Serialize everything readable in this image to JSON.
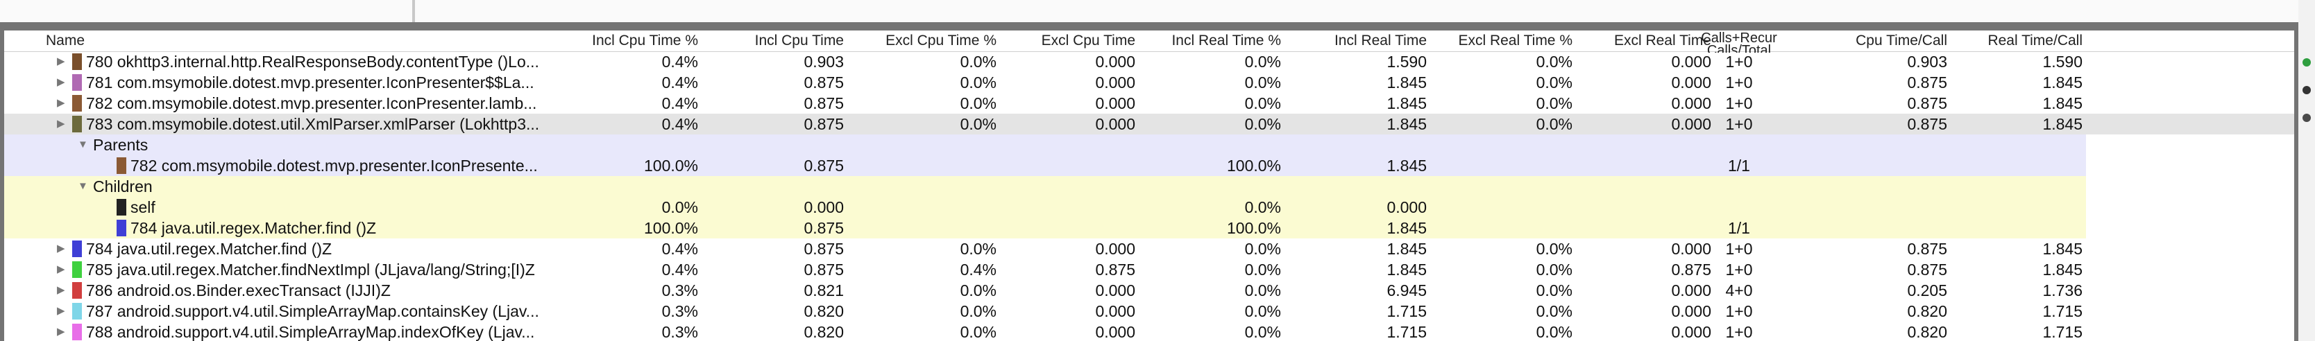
{
  "header": {
    "name": "Name",
    "incl_cpu_pct": "Incl Cpu Time %",
    "incl_cpu": "Incl Cpu Time",
    "excl_cpu_pct": "Excl Cpu Time %",
    "excl_cpu": "Excl Cpu Time",
    "incl_real_pct": "Incl Real Time %",
    "incl_real": "Incl Real Time",
    "excl_real_pct": "Excl Real Time %",
    "excl_real": "Excl Real Time",
    "calls_line1": "Calls+Recur",
    "calls_line2": "Calls/Total",
    "cpu_per_call": "Cpu Time/Call",
    "real_per_call": "Real Time/Call"
  },
  "rows": [
    {
      "kind": "method",
      "color": "#7a4f2b",
      "name": "780 okhttp3.internal.http.RealResponseBody.contentType ()Lo...",
      "incl_cpu_pct": "0.4%",
      "incl_cpu": "0.903",
      "excl_cpu_pct": "0.0%",
      "excl_cpu": "0.000",
      "incl_real_pct": "0.0%",
      "incl_real": "1.590",
      "excl_real_pct": "0.0%",
      "excl_real": "0.000",
      "calls": "1+0",
      "cpu_per_call": "0.903",
      "real_per_call": "1.590"
    },
    {
      "kind": "method",
      "color": "#b06ab3",
      "name": "781 com.msymobile.dotest.mvp.presenter.IconPresenter$$La...",
      "incl_cpu_pct": "0.4%",
      "incl_cpu": "0.875",
      "excl_cpu_pct": "0.0%",
      "excl_cpu": "0.000",
      "incl_real_pct": "0.0%",
      "incl_real": "1.845",
      "excl_real_pct": "0.0%",
      "excl_real": "0.000",
      "calls": "1+0",
      "cpu_per_call": "0.875",
      "real_per_call": "1.845"
    },
    {
      "kind": "method",
      "color": "#8b5a35",
      "name": "782 com.msymobile.dotest.mvp.presenter.IconPresenter.lamb...",
      "incl_cpu_pct": "0.4%",
      "incl_cpu": "0.875",
      "excl_cpu_pct": "0.0%",
      "excl_cpu": "0.000",
      "incl_real_pct": "0.0%",
      "incl_real": "1.845",
      "excl_real_pct": "0.0%",
      "excl_real": "0.000",
      "calls": "1+0",
      "cpu_per_call": "0.875",
      "real_per_call": "1.845"
    },
    {
      "kind": "selected",
      "color": "#6c6a3c",
      "name": "783 com.msymobile.dotest.util.XmlParser.xmlParser (Lokhttp3...",
      "incl_cpu_pct": "0.4%",
      "incl_cpu": "0.875",
      "excl_cpu_pct": "0.0%",
      "excl_cpu": "0.000",
      "incl_real_pct": "0.0%",
      "incl_real": "1.845",
      "excl_real_pct": "0.0%",
      "excl_real": "0.000",
      "calls": "1+0",
      "cpu_per_call": "0.875",
      "real_per_call": "1.845"
    },
    {
      "kind": "parents-header",
      "name": "Parents"
    },
    {
      "kind": "parent",
      "color": "#8b5a35",
      "name": "782 com.msymobile.dotest.mvp.presenter.IconPresente...",
      "incl_cpu_pct": "100.0%",
      "incl_cpu": "0.875",
      "incl_real_pct": "100.0%",
      "incl_real": "1.845",
      "calls": "1/1"
    },
    {
      "kind": "children-header",
      "name": "Children"
    },
    {
      "kind": "child",
      "color": "#222222",
      "name": "self",
      "incl_cpu_pct": "0.0%",
      "incl_cpu": "0.000",
      "incl_real_pct": "0.0%",
      "incl_real": "0.000",
      "calls": ""
    },
    {
      "kind": "child",
      "color": "#3f3fd6",
      "name": "784 java.util.regex.Matcher.find ()Z",
      "incl_cpu_pct": "100.0%",
      "incl_cpu": "0.875",
      "incl_real_pct": "100.0%",
      "incl_real": "1.845",
      "calls": "1/1"
    },
    {
      "kind": "method",
      "color": "#3f3fd6",
      "name": "784 java.util.regex.Matcher.find ()Z",
      "incl_cpu_pct": "0.4%",
      "incl_cpu": "0.875",
      "excl_cpu_pct": "0.0%",
      "excl_cpu": "0.000",
      "incl_real_pct": "0.0%",
      "incl_real": "1.845",
      "excl_real_pct": "0.0%",
      "excl_real": "0.000",
      "calls": "1+0",
      "cpu_per_call": "0.875",
      "real_per_call": "1.845"
    },
    {
      "kind": "method",
      "color": "#3fd13f",
      "name": "785 java.util.regex.Matcher.findNextImpl (JLjava/lang/String;[I)Z",
      "incl_cpu_pct": "0.4%",
      "incl_cpu": "0.875",
      "excl_cpu_pct": "0.4%",
      "excl_cpu": "0.875",
      "incl_real_pct": "0.0%",
      "incl_real": "1.845",
      "excl_real_pct": "0.0%",
      "excl_real": "0.875",
      "calls": "1+0",
      "cpu_per_call": "0.875",
      "real_per_call": "1.845"
    },
    {
      "kind": "method",
      "color": "#d13f3f",
      "name": "786 android.os.Binder.execTransact (IJJI)Z",
      "incl_cpu_pct": "0.3%",
      "incl_cpu": "0.821",
      "excl_cpu_pct": "0.0%",
      "excl_cpu": "0.000",
      "incl_real_pct": "0.0%",
      "incl_real": "6.945",
      "excl_real_pct": "0.0%",
      "excl_real": "0.000",
      "calls": "4+0",
      "cpu_per_call": "0.205",
      "real_per_call": "1.736"
    },
    {
      "kind": "method",
      "color": "#7fd6e8",
      "name": "787 android.support.v4.util.SimpleArrayMap.containsKey (Ljav...",
      "incl_cpu_pct": "0.3%",
      "incl_cpu": "0.820",
      "excl_cpu_pct": "0.0%",
      "excl_cpu": "0.000",
      "incl_real_pct": "0.0%",
      "incl_real": "1.715",
      "excl_real_pct": "0.0%",
      "excl_real": "0.000",
      "calls": "1+0",
      "cpu_per_call": "0.820",
      "real_per_call": "1.715"
    },
    {
      "kind": "method",
      "color": "#e86ee8",
      "name": "788 android.support.v4.util.SimpleArrayMap.indexOfKey (Ljav...",
      "incl_cpu_pct": "0.3%",
      "incl_cpu": "0.820",
      "excl_cpu_pct": "0.0%",
      "excl_cpu": "0.000",
      "incl_real_pct": "0.0%",
      "incl_real": "1.715",
      "excl_real_pct": "0.0%",
      "excl_real": "0.000",
      "calls": "1+0",
      "cpu_per_call": "0.820",
      "real_per_call": "1.715"
    }
  ],
  "side_dots": [
    "#2e9e3f",
    "#333333",
    "#4a4a4a"
  ]
}
